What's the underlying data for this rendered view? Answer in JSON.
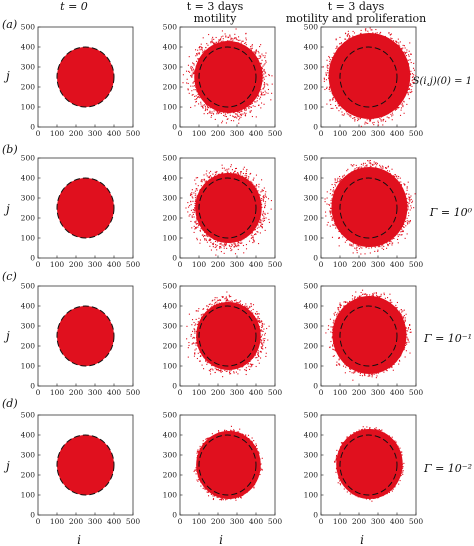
{
  "columns": [
    {
      "line1": "t = 0",
      "line2": ""
    },
    {
      "line1": "t = 3 days",
      "line2": "motility"
    },
    {
      "line1": "t = 3 days",
      "line2": "motility and proliferation"
    }
  ],
  "rows": [
    {
      "panel_label": "(a)",
      "annotation": "S(i,j)(0) = 1"
    },
    {
      "panel_label": "(b)",
      "annotation": "Γ = 10⁰"
    },
    {
      "panel_label": "(c)",
      "annotation": "Γ = 10⁻¹"
    },
    {
      "panel_label": "(d)",
      "annotation": "Γ = 10⁻²"
    }
  ],
  "axes": {
    "xlabel": "i",
    "ylabel": "j",
    "ticks": [
      "0",
      "100",
      "200",
      "300",
      "400",
      "500"
    ],
    "range": [
      0,
      500
    ]
  },
  "colors": {
    "cells": "#e0101e",
    "dashed_circle": "#111111"
  },
  "chart_data": {
    "type": "scatter",
    "xlabel": "i",
    "ylabel": "j",
    "xlim": [
      0,
      500
    ],
    "ylim": [
      0,
      500
    ],
    "initial_circle": {
      "center": [
        250,
        250
      ],
      "radius": 150
    },
    "panels": [
      {
        "row": "(a)",
        "column": "t = 0",
        "center": [
          250,
          250
        ],
        "radius": 150,
        "spread": 0
      },
      {
        "row": "(a)",
        "column": "motility",
        "center": [
          255,
          250
        ],
        "radius": 180,
        "spread": 35
      },
      {
        "row": "(a)",
        "column": "motility and proliferation",
        "center": [
          255,
          255
        ],
        "radius": 215,
        "spread": 25
      },
      {
        "row": "(b)",
        "column": "t = 0",
        "center": [
          250,
          250
        ],
        "radius": 150,
        "spread": 0
      },
      {
        "row": "(b)",
        "column": "motility",
        "center": [
          255,
          250
        ],
        "radius": 175,
        "spread": 35
      },
      {
        "row": "(b)",
        "column": "motility and proliferation",
        "center": [
          255,
          255
        ],
        "radius": 200,
        "spread": 25
      },
      {
        "row": "(c)",
        "column": "t = 0",
        "center": [
          250,
          250
        ],
        "radius": 150,
        "spread": 0
      },
      {
        "row": "(c)",
        "column": "motility",
        "center": [
          255,
          250
        ],
        "radius": 170,
        "spread": 30
      },
      {
        "row": "(c)",
        "column": "motility and proliferation",
        "center": [
          255,
          255
        ],
        "radius": 195,
        "spread": 20
      },
      {
        "row": "(d)",
        "column": "t = 0",
        "center": [
          250,
          250
        ],
        "radius": 150,
        "spread": 0
      },
      {
        "row": "(d)",
        "column": "motility",
        "center": [
          255,
          250
        ],
        "radius": 170,
        "spread": 10
      },
      {
        "row": "(d)",
        "column": "motility and proliferation",
        "center": [
          255,
          255
        ],
        "radius": 175,
        "spread": 8
      }
    ]
  }
}
